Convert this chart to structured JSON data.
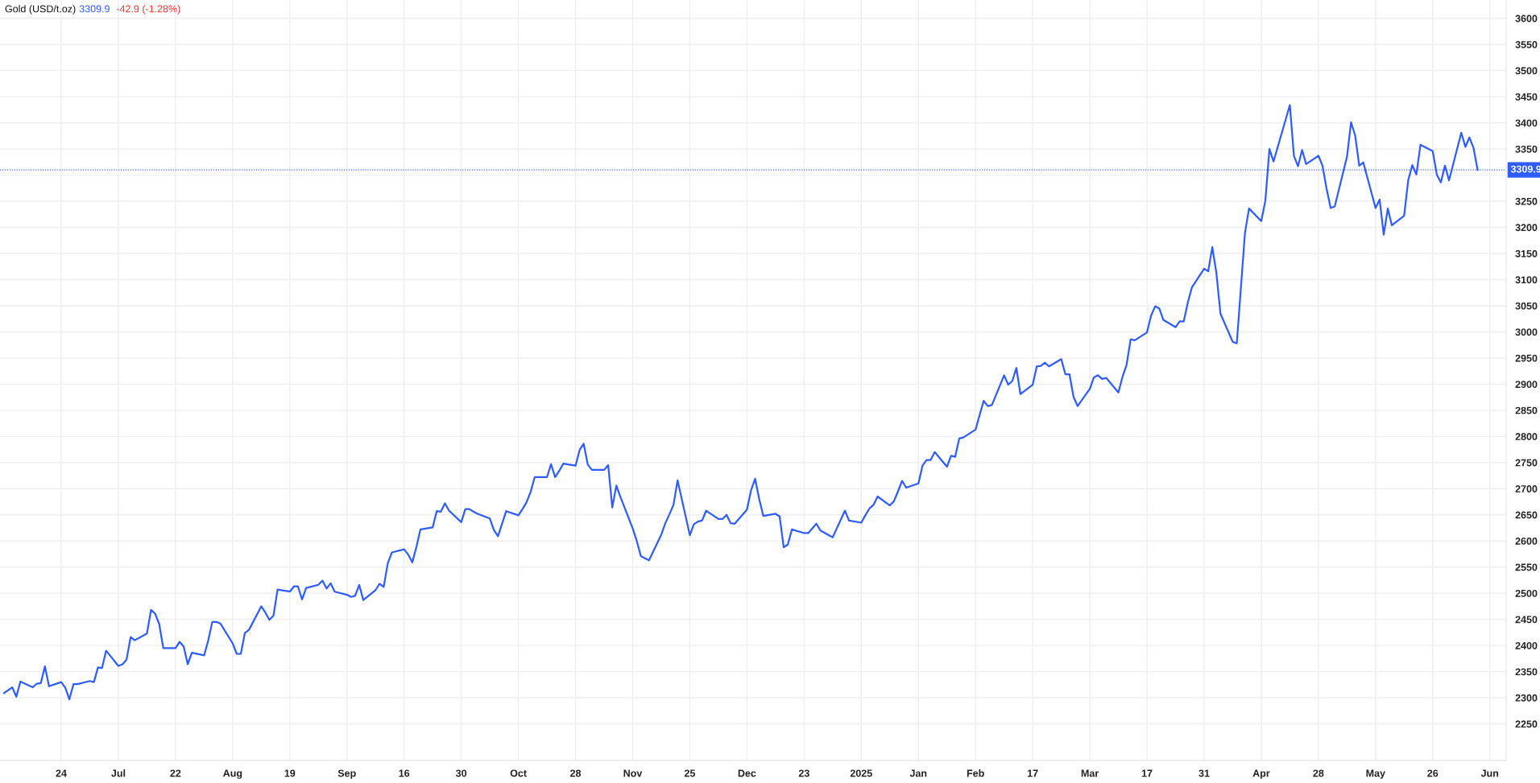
{
  "chart_data": {
    "type": "line",
    "title": "Gold (USD/t.oz)",
    "annotations": [
      "3309.9",
      "-42.9 (-1.28%)"
    ],
    "x": [
      "2024-06-10",
      "2024-06-12",
      "2024-06-13",
      "2024-06-14",
      "2024-06-17",
      "2024-06-18",
      "2024-06-19",
      "2024-06-20",
      "2024-06-21",
      "2024-06-24",
      "2024-06-25",
      "2024-06-26",
      "2024-06-27",
      "2024-06-28",
      "2024-07-01",
      "2024-07-02",
      "2024-07-03",
      "2024-07-04",
      "2024-07-05",
      "2024-07-08",
      "2024-07-09",
      "2024-07-10",
      "2024-07-11",
      "2024-07-12",
      "2024-07-15",
      "2024-07-16",
      "2024-07-17",
      "2024-07-18",
      "2024-07-19",
      "2024-07-22",
      "2024-07-23",
      "2024-07-24",
      "2024-07-25",
      "2024-07-26",
      "2024-07-29",
      "2024-07-30",
      "2024-07-31",
      "2024-08-01",
      "2024-08-02",
      "2024-08-05",
      "2024-08-06",
      "2024-08-07",
      "2024-08-08",
      "2024-08-09",
      "2024-08-12",
      "2024-08-13",
      "2024-08-14",
      "2024-08-15",
      "2024-08-16",
      "2024-08-19",
      "2024-08-20",
      "2024-08-21",
      "2024-08-22",
      "2024-08-23",
      "2024-08-26",
      "2024-08-27",
      "2024-08-28",
      "2024-08-29",
      "2024-08-30",
      "2024-09-02",
      "2024-09-03",
      "2024-09-04",
      "2024-09-05",
      "2024-09-06",
      "2024-09-09",
      "2024-09-10",
      "2024-09-11",
      "2024-09-12",
      "2024-09-13",
      "2024-09-16",
      "2024-09-17",
      "2024-09-18",
      "2024-09-19",
      "2024-09-20",
      "2024-09-23",
      "2024-09-24",
      "2024-09-25",
      "2024-09-26",
      "2024-09-27",
      "2024-09-30",
      "2024-10-01",
      "2024-10-02",
      "2024-10-03",
      "2024-10-04",
      "2024-10-07",
      "2024-10-08",
      "2024-10-09",
      "2024-10-10",
      "2024-10-11",
      "2024-10-14",
      "2024-10-15",
      "2024-10-16",
      "2024-10-17",
      "2024-10-18",
      "2024-10-21",
      "2024-10-22",
      "2024-10-23",
      "2024-10-24",
      "2024-10-25",
      "2024-10-28",
      "2024-10-29",
      "2024-10-30",
      "2024-10-31",
      "2024-11-01",
      "2024-11-04",
      "2024-11-05",
      "2024-11-06",
      "2024-11-07",
      "2024-11-08",
      "2024-11-11",
      "2024-11-12",
      "2024-11-13",
      "2024-11-14",
      "2024-11-15",
      "2024-11-18",
      "2024-11-19",
      "2024-11-20",
      "2024-11-21",
      "2024-11-22",
      "2024-11-25",
      "2024-11-26",
      "2024-11-27",
      "2024-11-28",
      "2024-11-29",
      "2024-12-02",
      "2024-12-03",
      "2024-12-04",
      "2024-12-05",
      "2024-12-06",
      "2024-12-09",
      "2024-12-10",
      "2024-12-11",
      "2024-12-12",
      "2024-12-13",
      "2024-12-16",
      "2024-12-17",
      "2024-12-18",
      "2024-12-19",
      "2024-12-20",
      "2024-12-23",
      "2024-12-24",
      "2024-12-26",
      "2024-12-27",
      "2024-12-30",
      "2024-12-31",
      "2025-01-02",
      "2025-01-03",
      "2025-01-06",
      "2025-01-07",
      "2025-01-08",
      "2025-01-09",
      "2025-01-10",
      "2025-01-13",
      "2025-01-14",
      "2025-01-15",
      "2025-01-16",
      "2025-01-17",
      "2025-01-20",
      "2025-01-21",
      "2025-01-22",
      "2025-01-23",
      "2025-01-24",
      "2025-01-27",
      "2025-01-28",
      "2025-01-29",
      "2025-01-30",
      "2025-01-31",
      "2025-02-03",
      "2025-02-04",
      "2025-02-05",
      "2025-02-06",
      "2025-02-07",
      "2025-02-10",
      "2025-02-11",
      "2025-02-12",
      "2025-02-13",
      "2025-02-14",
      "2025-02-17",
      "2025-02-18",
      "2025-02-19",
      "2025-02-20",
      "2025-02-21",
      "2025-02-24",
      "2025-02-25",
      "2025-02-26",
      "2025-02-27",
      "2025-02-28",
      "2025-03-03",
      "2025-03-04",
      "2025-03-05",
      "2025-03-06",
      "2025-03-07",
      "2025-03-10",
      "2025-03-11",
      "2025-03-12",
      "2025-03-13",
      "2025-03-14",
      "2025-03-17",
      "2025-03-18",
      "2025-03-19",
      "2025-03-20",
      "2025-03-21",
      "2025-03-24",
      "2025-03-25",
      "2025-03-26",
      "2025-03-27",
      "2025-03-28",
      "2025-03-31",
      "2025-04-01",
      "2025-04-02",
      "2025-04-03",
      "2025-04-04",
      "2025-04-07",
      "2025-04-08",
      "2025-04-10",
      "2025-04-11",
      "2025-04-14",
      "2025-04-15",
      "2025-04-16",
      "2025-04-17",
      "2025-04-21",
      "2025-04-22",
      "2025-04-23",
      "2025-04-24",
      "2025-04-25",
      "2025-04-28",
      "2025-04-29",
      "2025-04-30",
      "2025-05-01",
      "2025-05-02",
      "2025-05-05",
      "2025-05-06",
      "2025-05-07",
      "2025-05-08",
      "2025-05-09",
      "2025-05-12",
      "2025-05-13",
      "2025-05-14",
      "2025-05-15",
      "2025-05-16",
      "2025-05-19",
      "2025-05-20",
      "2025-05-21",
      "2025-05-22",
      "2025-05-23",
      "2025-05-26",
      "2025-05-27",
      "2025-05-28",
      "2025-05-29",
      "2025-05-30",
      "2025-06-02",
      "2025-06-03",
      "2025-06-04",
      "2025-06-05",
      "2025-06-06"
    ],
    "series": [
      {
        "color": "#2f5cff",
        "values": [
          2309,
          2320,
          2302,
          2331,
          2320,
          2327,
          2328,
          2360,
          2322,
          2330,
          2319,
          2297,
          2326,
          2326,
          2332,
          2330,
          2358,
          2357,
          2390,
          2361,
          2364,
          2373,
          2416,
          2410,
          2423,
          2468,
          2461,
          2441,
          2395,
          2395,
          2407,
          2398,
          2364,
          2386,
          2381,
          2409,
          2445,
          2445,
          2442,
          2404,
          2384,
          2384,
          2424,
          2430,
          2475,
          2463,
          2449,
          2457,
          2507,
          2503,
          2513,
          2513,
          2488,
          2510,
          2516,
          2524,
          2509,
          2519,
          2503,
          2497,
          2493,
          2495,
          2516,
          2487,
          2506,
          2518,
          2512,
          2557,
          2578,
          2584,
          2574,
          2559,
          2588,
          2622,
          2626,
          2657,
          2656,
          2672,
          2658,
          2636,
          2661,
          2661,
          2656,
          2652,
          2643,
          2621,
          2609,
          2633,
          2657,
          2649,
          2661,
          2674,
          2694,
          2722,
          2722,
          2747,
          2722,
          2734,
          2748,
          2744,
          2774,
          2786,
          2746,
          2736,
          2736,
          2745,
          2664,
          2706,
          2684,
          2624,
          2600,
          2571,
          2567,
          2563,
          2612,
          2634,
          2651,
          2669,
          2716,
          2611,
          2632,
          2637,
          2639,
          2658,
          2642,
          2642,
          2650,
          2634,
          2633,
          2660,
          2697,
          2719,
          2680,
          2648,
          2652,
          2647,
          2588,
          2593,
          2622,
          2615,
          2615,
          2633,
          2620,
          2607,
          2624,
          2658,
          2639,
          2635,
          2649,
          2662,
          2669,
          2685,
          2668,
          2676,
          2695,
          2715,
          2702,
          2710,
          2744,
          2755,
          2755,
          2770,
          2742,
          2763,
          2761,
          2796,
          2798,
          2813,
          2841,
          2868,
          2858,
          2860,
          2917,
          2899,
          2906,
          2931,
          2881,
          2899,
          2934,
          2935,
          2941,
          2934,
          2948,
          2919,
          2919,
          2876,
          2858,
          2891,
          2913,
          2917,
          2910,
          2912,
          2884,
          2914,
          2937,
          2986,
          2984,
          2999,
          3031,
          3049,
          3045,
          3023,
          3009,
          3020,
          3020,
          3056,
          3085,
          3121,
          3116,
          3162,
          3113,
          3035,
          2981,
          2978,
          3189,
          3236,
          3212,
          3251,
          3350,
          3326,
          3434,
          3337,
          3317,
          3348,
          3321,
          3337,
          3318,
          3274,
          3237,
          3240,
          3335,
          3401,
          3376,
          3318,
          3324,
          3237,
          3253,
          3186,
          3236,
          3204,
          3222,
          3290,
          3319,
          3301,
          3358,
          3346,
          3301,
          3286,
          3318,
          3290,
          3381,
          3354,
          3372,
          3352,
          3310
        ]
      }
    ],
    "xlim": [
      "2024-06-09",
      "2025-06-13"
    ],
    "xticks": [
      {
        "value": "2024-06-24",
        "label": "24"
      },
      {
        "value": "2024-07-08",
        "label": "Jul"
      },
      {
        "value": "2024-07-22",
        "label": "22"
      },
      {
        "value": "2024-08-05",
        "label": "Aug"
      },
      {
        "value": "2024-08-19",
        "label": "19"
      },
      {
        "value": "2024-09-02",
        "label": "Sep"
      },
      {
        "value": "2024-09-16",
        "label": "16"
      },
      {
        "value": "2024-09-30",
        "label": "30"
      },
      {
        "value": "2024-10-14",
        "label": "Oct"
      },
      {
        "value": "2024-10-28",
        "label": "28"
      },
      {
        "value": "2024-11-11",
        "label": "Nov"
      },
      {
        "value": "2024-11-25",
        "label": "25"
      },
      {
        "value": "2024-12-09",
        "label": "Dec"
      },
      {
        "value": "2024-12-23",
        "label": "23"
      },
      {
        "value": "2025-01-06",
        "label": "2025"
      },
      {
        "value": "2025-01-20",
        "label": "Jan"
      },
      {
        "value": "2025-02-03",
        "label": "Feb"
      },
      {
        "value": "2025-02-17",
        "label": "17"
      },
      {
        "value": "2025-03-03",
        "label": "Mar"
      },
      {
        "value": "2025-03-17",
        "label": "17"
      },
      {
        "value": "2025-03-31",
        "label": "31"
      },
      {
        "value": "2025-04-14",
        "label": "Apr"
      },
      {
        "value": "2025-04-28",
        "label": "28"
      },
      {
        "value": "2025-05-12",
        "label": "May"
      },
      {
        "value": "2025-05-26",
        "label": "26"
      },
      {
        "value": "2025-06-09",
        "label": "Jun"
      }
    ],
    "ylim": [
      2180,
      3635
    ],
    "yticks": [
      2250,
      2300,
      2350,
      2400,
      2450,
      2500,
      2550,
      2600,
      2650,
      2700,
      2750,
      2800,
      2850,
      2900,
      2950,
      3000,
      3050,
      3100,
      3150,
      3200,
      3250,
      {
        "value": 3300,
        "label": null
      },
      3350,
      3400,
      3450,
      3500,
      3550,
      3600
    ],
    "ref_lines": [
      {
        "axis": "y",
        "value": 3309.9,
        "label": "3309.9",
        "color": "#2f5cff",
        "line_style": "dotted"
      }
    ],
    "grid": true,
    "marker": "none",
    "line_style": "solid",
    "legend": false
  }
}
